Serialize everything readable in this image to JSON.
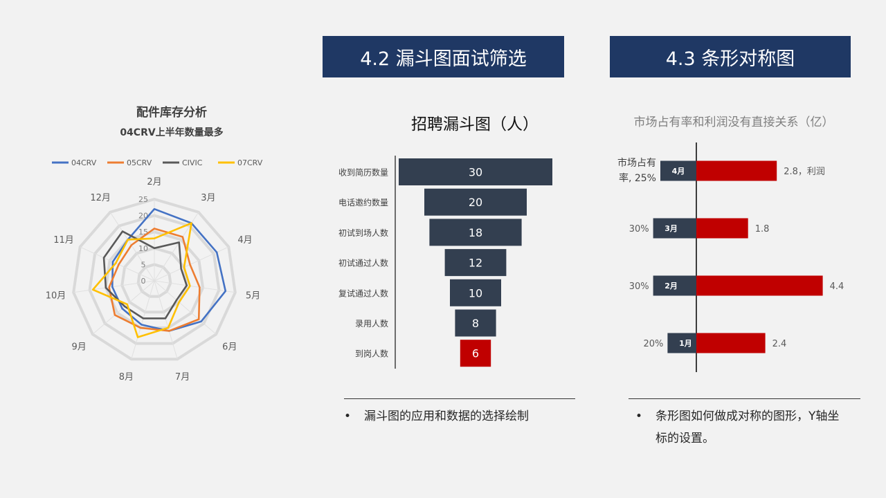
{
  "headers": {
    "funnel": "4.2 漏斗图面试筛选",
    "bar": "4.3 条形对称图"
  },
  "colors": {
    "header_bg": "#1f3864",
    "funnel_bar": "#333f50",
    "funnel_highlight": "#c00000",
    "bar_left": "#333f50",
    "bar_right": "#c00000"
  },
  "chart_data": [
    {
      "type": "radar",
      "title": "配件库存分析",
      "subtitle": "04CRV上半年数量最多",
      "legend_position": "top",
      "categories": [
        "2月",
        "3月",
        "4月",
        "5月",
        "6月",
        "7月",
        "8月",
        "9月",
        "10月",
        "11月",
        "12月"
      ],
      "r_ticks": [
        "0",
        "5",
        "10",
        "15",
        "20",
        "25"
      ],
      "rlim": [
        0,
        25
      ],
      "series": [
        {
          "name": "04CRV",
          "color": "#4472c4",
          "values": [
            22,
            21,
            21,
            22,
            19,
            16,
            14,
            13,
            13,
            14,
            15
          ]
        },
        {
          "name": "05CRV",
          "color": "#ed7d31",
          "values": [
            16,
            16,
            12,
            14,
            18,
            16,
            15,
            16,
            14,
            12,
            13
          ]
        },
        {
          "name": "CIVIC",
          "color": "#595959",
          "values": [
            10,
            14,
            9,
            10,
            9,
            12,
            12,
            12,
            15,
            17,
            18
          ]
        },
        {
          "name": "07CRV",
          "color": "#ffc000",
          "values": [
            13,
            21,
            10,
            11,
            10,
            15,
            18,
            11,
            19,
            13,
            15
          ]
        }
      ]
    },
    {
      "type": "bar",
      "orientation": "horizontal-funnel",
      "title": "招聘漏斗图（人）",
      "categories": [
        "收到简历数量",
        "电话邀约数量",
        "初试到场人数",
        "初试通过人数",
        "复试通过人数",
        "录用人数",
        "到岗人数"
      ],
      "values": [
        30,
        20,
        18,
        12,
        10,
        8,
        6
      ],
      "highlight_index": 6
    },
    {
      "type": "bar",
      "orientation": "horizontal-symmetric",
      "title": "市场占有率和利润没有直接关系（亿）",
      "categories": [
        "4月",
        "3月",
        "2月",
        "1月"
      ],
      "series": [
        {
          "name": "市场占有率",
          "values": [
            25,
            30,
            30,
            20
          ],
          "labels": [
            "市场占有\n率, 25%",
            "30%",
            "30%",
            "20%"
          ]
        },
        {
          "name": "利润",
          "values": [
            2.8,
            1.8,
            4.4,
            2.4
          ],
          "labels": [
            "2.8，利润",
            "1.8",
            "4.4",
            "2.4"
          ]
        }
      ]
    }
  ],
  "bullets": {
    "funnel": "漏斗图的应用和数据的选择绘制",
    "bar": "条形图如何做成对称的图形，Y轴坐标的设置。",
    "symbol": "•"
  }
}
